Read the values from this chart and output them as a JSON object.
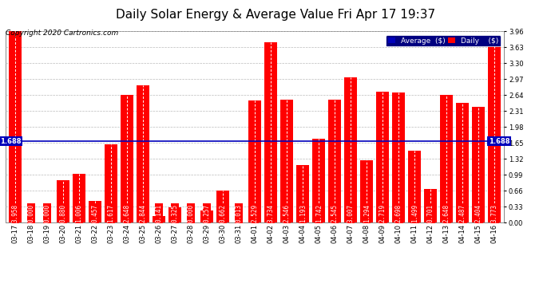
{
  "title": "Daily Solar Energy & Average Value Fri Apr 17 19:37",
  "copyright": "Copyright 2020 Cartronics.com",
  "categories": [
    "03-17",
    "03-18",
    "03-19",
    "03-20",
    "03-21",
    "03-22",
    "03-23",
    "03-24",
    "03-25",
    "03-26",
    "03-27",
    "03-28",
    "03-29",
    "03-30",
    "03-31",
    "04-01",
    "04-02",
    "04-03",
    "04-04",
    "04-05",
    "04-06",
    "04-07",
    "04-08",
    "04-09",
    "04-10",
    "04-11",
    "04-12",
    "04-13",
    "04-14",
    "04-15",
    "04-16"
  ],
  "values": [
    3.958,
    0.0,
    0.0,
    0.88,
    1.006,
    0.457,
    1.617,
    2.648,
    2.844,
    0.141,
    0.325,
    0.0,
    0.257,
    0.662,
    0.013,
    2.529,
    3.734,
    2.546,
    1.193,
    1.742,
    2.545,
    3.007,
    1.294,
    2.719,
    2.698,
    1.499,
    0.701,
    2.648,
    2.487,
    2.404,
    3.773
  ],
  "average": 1.688,
  "ylim": [
    0.0,
    3.96
  ],
  "yticks": [
    0.0,
    0.33,
    0.66,
    0.99,
    1.32,
    1.65,
    1.98,
    2.31,
    2.64,
    2.97,
    3.3,
    3.63,
    3.96
  ],
  "bar_color": "#ff0000",
  "avg_line_color": "#0000bb",
  "bg_color": "#ffffff",
  "grid_color": "#bbbbbb",
  "title_fontsize": 11,
  "copyright_fontsize": 6.5,
  "tick_fontsize": 6,
  "value_fontsize": 5.5,
  "avg_label": "1.688",
  "legend_avg_bg": "#0000bb",
  "legend_daily_bg": "#ff0000"
}
